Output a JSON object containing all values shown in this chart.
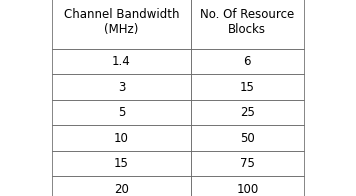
{
  "col1_header": "Channel Bandwidth\n(MHz)",
  "col2_header": "No. Of Resource\nBlocks",
  "rows": [
    [
      "1.4",
      "6"
    ],
    [
      "3",
      "15"
    ],
    [
      "5",
      "25"
    ],
    [
      "10",
      "50"
    ],
    [
      "15",
      "75"
    ],
    [
      "20",
      "100"
    ]
  ],
  "background_color": "#ffffff",
  "border_color": "#555555",
  "text_color": "#000000",
  "header_fontsize": 8.5,
  "cell_fontsize": 8.5,
  "fig_width": 3.56,
  "fig_height": 1.96,
  "dpi": 100
}
